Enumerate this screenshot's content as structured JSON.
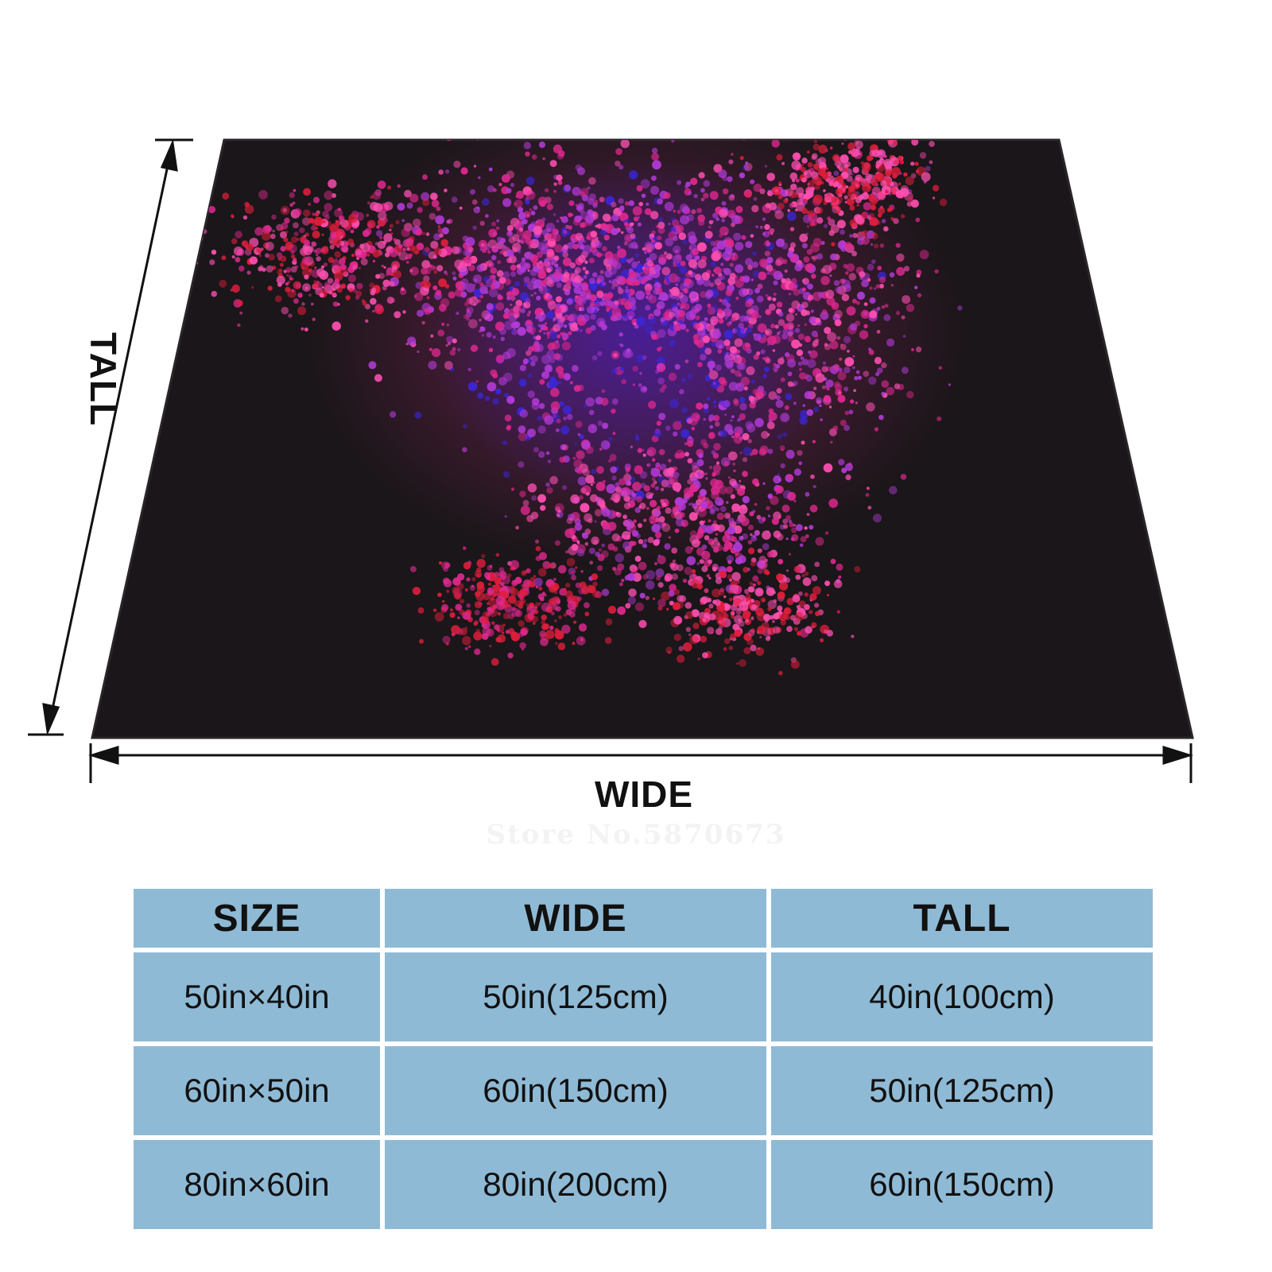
{
  "diagram": {
    "wide_label": "WIDE",
    "tall_label": "TALL",
    "watermark": "Store No.5870673"
  },
  "product": {
    "design": "abstract-particle-cloud",
    "colors": {
      "blanket": "#1a1619",
      "magenta": "#e0288f",
      "pink": "#ff4fb2",
      "purple": "#b23ad8",
      "blue": "#3b26d8",
      "red": "#e01e3c"
    }
  },
  "size_table": {
    "headers": [
      "SIZE",
      "WIDE",
      "TALL"
    ],
    "rows": [
      [
        "50in×40in",
        "50in(125cm)",
        "40in(100cm)"
      ],
      [
        "60in×50in",
        "60in(150cm)",
        "50in(125cm)"
      ],
      [
        "80in×60in",
        "80in(200cm)",
        "60in(150cm)"
      ]
    ],
    "cell_color": "#8fbad5"
  }
}
